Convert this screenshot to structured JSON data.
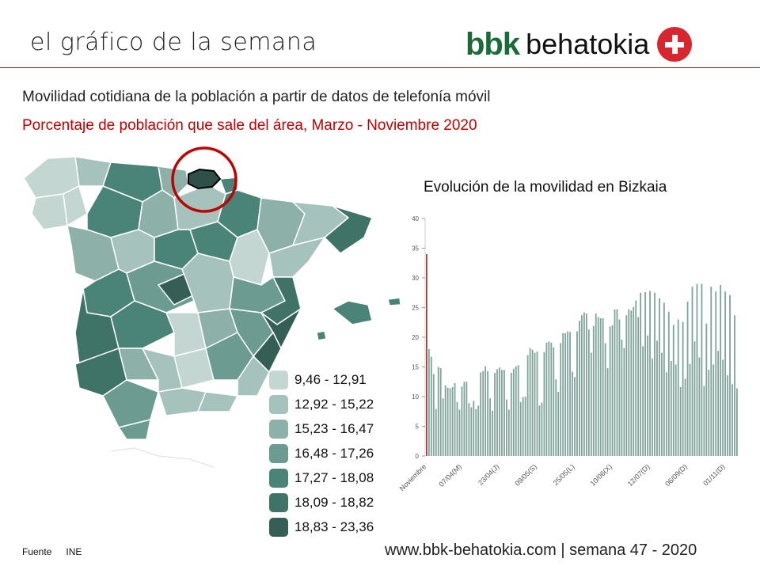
{
  "header": {
    "title": "el gráfico de la semana",
    "logo_bbk": "bbk",
    "logo_behatokia": "behatokia"
  },
  "subtitle": "Movilidad cotidiana de la población a partir de datos de telefonía móvil",
  "subtitle_red": "Porcentaje de población que sale del área, Marzo - Noviembre 2020",
  "colors": {
    "accent_red": "#c00000",
    "bar": "#7fa39a",
    "bar_highlight": "#a04040",
    "brand_green": "#1a6b38"
  },
  "map": {
    "legend": [
      {
        "label": "9,46  - 12,91",
        "color": "#c4d6d2"
      },
      {
        "label": "12,92 - 15,22",
        "color": "#a6c2bc"
      },
      {
        "label": "15,23 - 16,47",
        "color": "#8db1a9"
      },
      {
        "label": "16,48 - 17,26",
        "color": "#6b9b91"
      },
      {
        "label": "17,27 - 18,08",
        "color": "#4a8478"
      },
      {
        "label": "18,09 - 18,82",
        "color": "#3f7367"
      },
      {
        "label": "18,83 - 23,36",
        "color": "#355f55"
      }
    ]
  },
  "chart_data": {
    "type": "bar",
    "title": "Evolución de la movilidad en Bizkaia",
    "xlabel": "",
    "ylabel": "",
    "ylim": [
      0,
      40
    ],
    "yticks": [
      0,
      5,
      10,
      15,
      20,
      25,
      30,
      35,
      40
    ],
    "xtick_labels": [
      {
        "label": "Noviembre",
        "index": 0
      },
      {
        "label": "07/04(M)",
        "index": 15
      },
      {
        "label": "23/04(J)",
        "index": 31
      },
      {
        "label": "09/05(S)",
        "index": 47
      },
      {
        "label": "25/05(L)",
        "index": 63
      },
      {
        "label": "10/06(X)",
        "index": 79
      },
      {
        "label": "12/07(D)",
        "index": 95
      },
      {
        "label": "06/09(D)",
        "index": 111
      },
      {
        "label": "01/11(D)",
        "index": 127
      }
    ],
    "highlight_index": 0,
    "values": [
      34,
      18,
      16.7,
      13.8,
      7.9,
      15,
      14.8,
      9.7,
      11.9,
      11.5,
      11.4,
      11.6,
      12.3,
      9.1,
      7.8,
      11.7,
      12.5,
      12.5,
      8.9,
      8.2,
      9.3,
      7.9,
      8.5,
      14.1,
      14.3,
      15.1,
      14.3,
      9.7,
      7.6,
      14,
      14.6,
      14.9,
      14.5,
      14.5,
      9.5,
      7.8,
      14,
      14.7,
      15.1,
      15.3,
      9.1,
      9.9,
      10,
      17,
      18.2,
      17.9,
      17.4,
      17.6,
      8.5,
      9,
      17.5,
      19.1,
      19.3,
      19.1,
      18.3,
      12.9,
      10.8,
      19,
      20.7,
      20.7,
      21,
      20.9,
      14.2,
      13.3,
      21,
      22.8,
      23.7,
      24.2,
      24,
      21.3,
      17.4,
      21.9,
      24,
      23.4,
      23.2,
      23.2,
      19,
      14.8,
      21.8,
      22,
      24.7,
      24.7,
      23,
      19.6,
      18.2,
      23.7,
      24.7,
      24.5,
      25.1,
      26.2,
      23.4,
      27.5,
      18.5,
      27.6,
      20.3,
      27.8,
      16.4,
      27.5,
      19.4,
      26.6,
      17.4,
      25.8,
      14.1,
      24.3,
      16,
      22.1,
      15.4,
      23,
      11.6,
      22.6,
      13,
      26,
      15.5,
      28.5,
      19.3,
      29,
      16.6,
      29,
      11.8,
      22.3,
      14.5,
      28.5,
      15.4,
      27.7,
      17.7,
      28.8,
      16.2,
      27.7,
      13.6,
      27.1,
      12.1,
      23.7,
      11.4
    ]
  },
  "footer": {
    "source_label": "Fuente",
    "source_value": "INE",
    "right": "www.bbk-behatokia.com | semana 47 - 2020"
  }
}
